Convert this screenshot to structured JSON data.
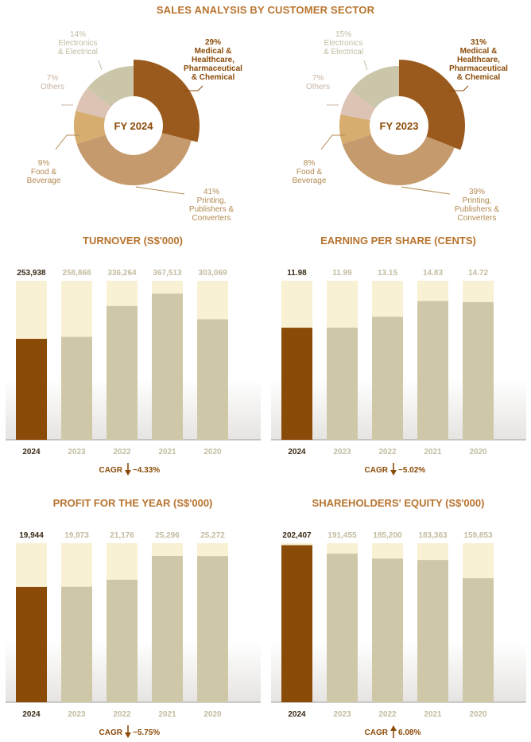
{
  "page_title": "SALES ANALYSIS BY CUSTOMER SECTOR",
  "colors": {
    "accent_title": "#b8732e",
    "current_year": "#8b4b08",
    "past_year": "#cfc8a8",
    "bar_track": "#f8f1d4",
    "down_arrow": "#8b4b08",
    "up_arrow": "#8b4b08"
  },
  "chart_data": [
    {
      "type": "pie",
      "center_label": "FY 2024",
      "slices": [
        {
          "label_lines": [
            "29%",
            "Medical &",
            "Healthcare,",
            "Pharmaceutical",
            "& Chemical"
          ],
          "value": 29,
          "color": "#9b5a1d",
          "label_color": "#8b4b08"
        },
        {
          "label_lines": [
            "41%",
            "Printing,",
            "Publishers &",
            "Converters"
          ],
          "value": 41,
          "color": "#c59a6c",
          "label_color": "#b38a52"
        },
        {
          "label_lines": [
            "9%",
            "Food &",
            "Beverage"
          ],
          "value": 9,
          "color": "#d6ad6e",
          "label_color": "#b38a52"
        },
        {
          "label_lines": [
            "7%",
            "Others"
          ],
          "value": 7,
          "color": "#dcc3b3",
          "label_color": "#c9b3a3"
        },
        {
          "label_lines": [
            "14%",
            "Electronics",
            "& Electrical"
          ],
          "value": 14,
          "color": "#cbc5a9",
          "label_color": "#c2bca0"
        }
      ]
    },
    {
      "type": "pie",
      "center_label": "FY 2023",
      "slices": [
        {
          "label_lines": [
            "31%",
            "Medical &",
            "Healthcare,",
            "Pharmaceutical",
            "& Chemical"
          ],
          "value": 31,
          "color": "#9b5a1d",
          "label_color": "#8b4b08"
        },
        {
          "label_lines": [
            "39%",
            "Printing,",
            "Publishers &",
            "Converters"
          ],
          "value": 39,
          "color": "#c59a6c",
          "label_color": "#b38a52"
        },
        {
          "label_lines": [
            "8%",
            "Food &",
            "Beverage"
          ],
          "value": 8,
          "color": "#d6ad6e",
          "label_color": "#b38a52"
        },
        {
          "label_lines": [
            "7%",
            "Others"
          ],
          "value": 7,
          "color": "#dcc3b3",
          "label_color": "#c9b3a3"
        },
        {
          "label_lines": [
            "15%",
            "Electronics",
            "& Electrical"
          ],
          "value": 15,
          "color": "#cbc5a9",
          "label_color": "#c2bca0"
        }
      ]
    },
    {
      "type": "bar",
      "title": "TURNOVER (S$'000)",
      "categories": [
        "2024",
        "2023",
        "2022",
        "2021",
        "2020"
      ],
      "values": [
        253938,
        258868,
        336264,
        367513,
        303069
      ],
      "value_labels": [
        "253,938",
        "258,868",
        "336,264",
        "367,513",
        "303,069"
      ],
      "ylim": [
        0,
        400000
      ],
      "cagr_label": "CAGR",
      "cagr_direction": "down",
      "cagr_value": "−4.33%"
    },
    {
      "type": "bar",
      "title": "EARNING PER SHARE (CENTS)",
      "categories": [
        "2024",
        "2023",
        "2022",
        "2021",
        "2020"
      ],
      "values": [
        11.98,
        11.99,
        13.15,
        14.83,
        14.72
      ],
      "value_labels": [
        "11.98",
        "11.99",
        "13.15",
        "14.83",
        "14.72"
      ],
      "ylim": [
        0,
        17
      ],
      "cagr_label": "CAGR",
      "cagr_direction": "down",
      "cagr_value": "−5.02%"
    },
    {
      "type": "bar",
      "title": "PROFIT FOR THE YEAR (S$'000)",
      "categories": [
        "2024",
        "2023",
        "2022",
        "2021",
        "2020"
      ],
      "values": [
        19944,
        19973,
        21176,
        25296,
        25272
      ],
      "value_labels": [
        "19,944",
        "19,973",
        "21,176",
        "25,296",
        "25,272"
      ],
      "ylim": [
        0,
        27500
      ],
      "cagr_label": "CAGR",
      "cagr_direction": "down",
      "cagr_value": "−5.75%"
    },
    {
      "type": "bar",
      "title": "SHAREHOLDERS' EQUITY (S$'000)",
      "categories": [
        "2024",
        "2023",
        "2022",
        "2021",
        "2020"
      ],
      "values": [
        202407,
        191455,
        185200,
        183363,
        159853
      ],
      "value_labels": [
        "202,407",
        "191,455",
        "185,200",
        "183,363",
        "159,853"
      ],
      "ylim": [
        0,
        205000
      ],
      "cagr_label": "CAGR",
      "cagr_direction": "up",
      "cagr_value": "6.08%"
    }
  ]
}
